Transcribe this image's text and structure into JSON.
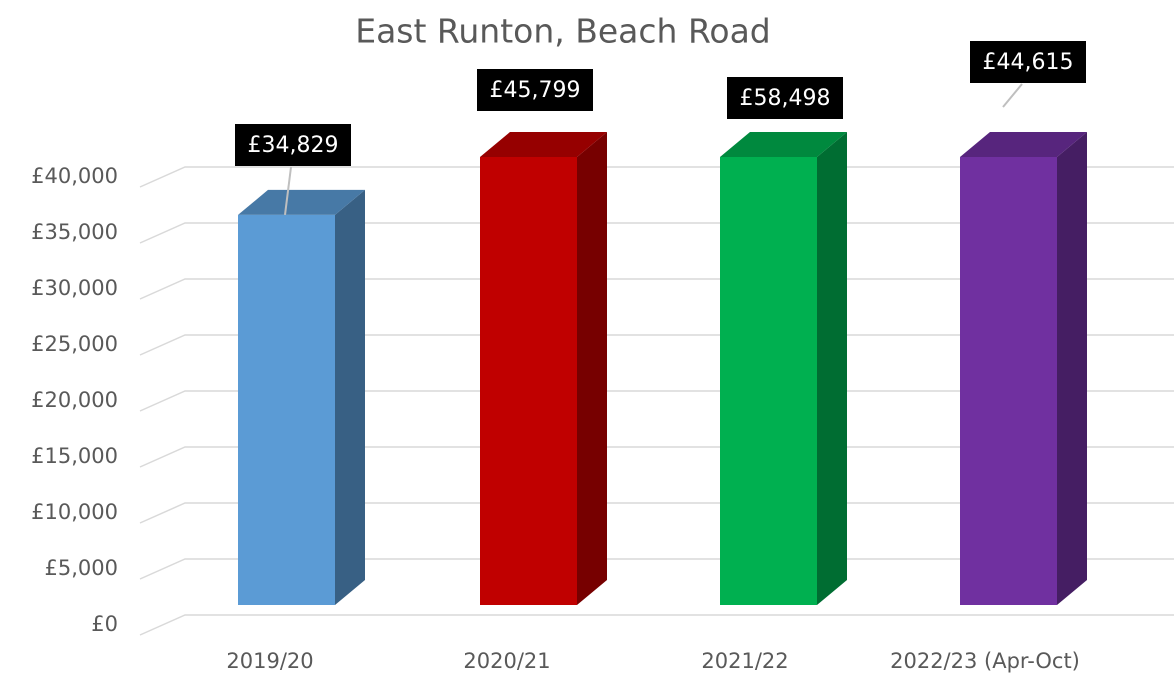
{
  "chart_data": {
    "type": "bar3d",
    "title": "East Runton, Beach Road",
    "categories": [
      "2019/20",
      "2020/21",
      "2021/22",
      "2022/23 (Apr-Oct)"
    ],
    "values": [
      34829,
      45799,
      58498,
      44615
    ],
    "value_labels": [
      "£34,829",
      "£45,799",
      "£58,498",
      "£44,615"
    ],
    "colors": [
      "#5b9bd5",
      "#c00000",
      "#00b050",
      "#7030a0"
    ],
    "ylim": [
      0,
      40000
    ],
    "yticks": [
      {
        "value": 0,
        "label": "£0"
      },
      {
        "value": 5000,
        "label": "£5,000"
      },
      {
        "value": 10000,
        "label": "£10,000"
      },
      {
        "value": 15000,
        "label": "£15,000"
      },
      {
        "value": 20000,
        "label": "£20,000"
      },
      {
        "value": 25000,
        "label": "£25,000"
      },
      {
        "value": 30000,
        "label": "£30,000"
      },
      {
        "value": 35000,
        "label": "£35,000"
      },
      {
        "value": 40000,
        "label": "£40,000"
      }
    ],
    "grid": true
  }
}
